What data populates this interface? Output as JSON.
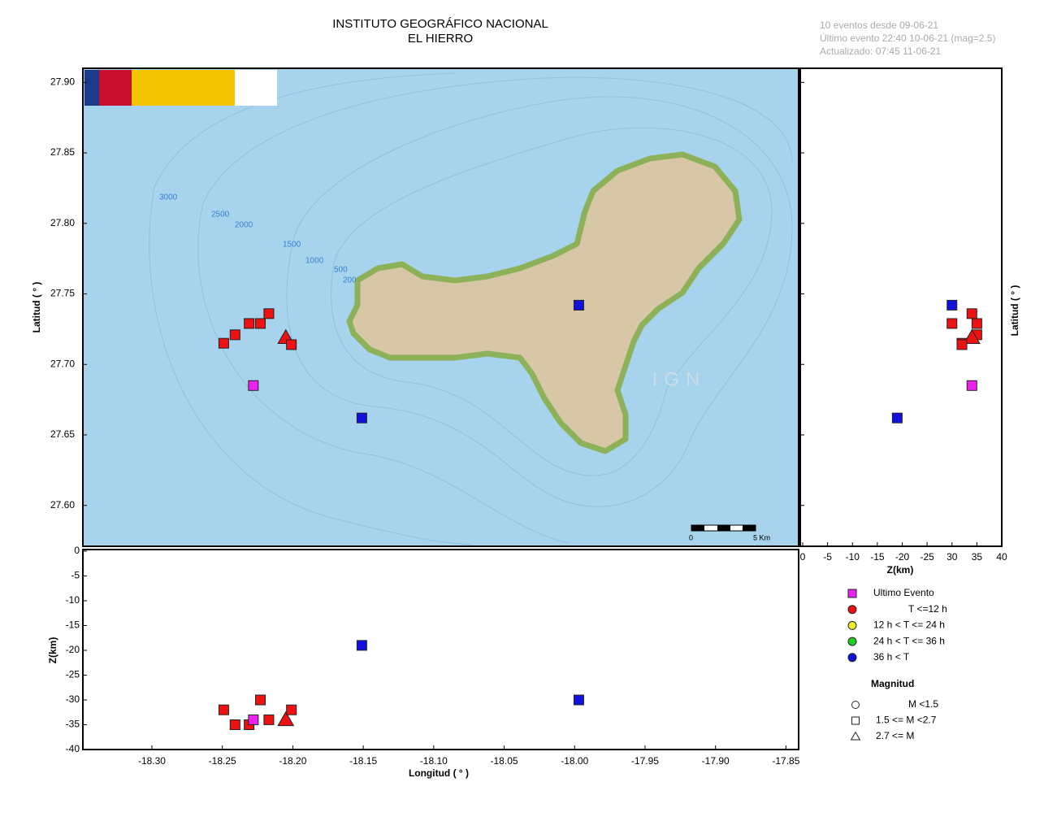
{
  "header": {
    "title": "INSTITUTO GEOGRÁFICO NACIONAL",
    "subtitle": "EL HIERRO",
    "info": [
      "10 eventos desde 09-06-21",
      "Último evento 22:40 10-06-21  (mag=2.5)",
      "Actualizado:  07:45  11-06-21"
    ]
  },
  "chart_data": {
    "type": "map",
    "xlabel": "Longitud ( ° )",
    "ylabel": "Latitud ( ° )",
    "zlabel": "Z(km)",
    "xlim": [
      -18.349,
      -17.841
    ],
    "ylim": [
      27.571,
      27.91
    ],
    "zlim": [
      0,
      -40
    ],
    "z2lim": [
      0,
      -40
    ],
    "xticks": [
      {
        "value": -18.3,
        "label": "-18.30"
      },
      {
        "value": -18.25,
        "label": "-18.25"
      },
      {
        "value": -18.2,
        "label": "-18.20"
      },
      {
        "value": -18.15,
        "label": "-18.15"
      },
      {
        "value": -18.1,
        "label": "-18.10"
      },
      {
        "value": -18.05,
        "label": "-18.05"
      },
      {
        "value": -18.0,
        "label": "-18.00"
      },
      {
        "value": -17.95,
        "label": "-17.95"
      },
      {
        "value": -17.9,
        "label": "-17.90"
      },
      {
        "value": -17.85,
        "label": "-17.85"
      }
    ],
    "yticks": [
      {
        "value": 27.9,
        "label": "27.90"
      },
      27.85,
      {
        "value": 27.8,
        "label": "27.80"
      },
      27.75,
      {
        "value": 27.7,
        "label": "27.70"
      },
      27.65,
      {
        "value": 27.6,
        "label": "27.60"
      }
    ],
    "zticks": [
      0,
      -5,
      -10,
      -15,
      -20,
      -25,
      -30,
      -35,
      -40
    ],
    "z2ticks": [
      0,
      -5,
      -10,
      -15,
      -20,
      -25,
      {
        "value": -30,
        "label": "30"
      },
      {
        "value": -35,
        "label": "35"
      },
      {
        "value": -40,
        "label": "40"
      }
    ],
    "events": {
      "lon": [
        -18.249,
        -18.241,
        -18.231,
        -18.223,
        -18.217,
        -18.205,
        -18.201,
        -18.228,
        -18.151,
        -17.997
      ],
      "lat": [
        27.715,
        27.721,
        27.729,
        27.729,
        27.736,
        27.719,
        27.714,
        27.685,
        27.662,
        27.742
      ],
      "depth": [
        -32,
        -35,
        -35,
        -30,
        -34,
        -34,
        -32,
        -34,
        -19,
        -30
      ],
      "color": [
        "#ee1111",
        "#ee1111",
        "#ee1111",
        "#ee1111",
        "#ee1111",
        "#ee1111",
        "#ee1111",
        "#ee22ee",
        "#1111dd",
        "#1111dd"
      ],
      "shape": [
        "square",
        "square",
        "square",
        "square",
        "square",
        "triangle",
        "square",
        "square",
        "square",
        "square"
      ]
    },
    "legend": {
      "time": [
        {
          "label": "Ultimo Evento",
          "color": "#ee22ee",
          "marker": "square"
        },
        {
          "label": "T <=12 h",
          "color": "#ee1111",
          "marker": "circle"
        },
        {
          "label": "12 h  < T <= 24 h",
          "color": "#eeee22",
          "marker": "circle"
        },
        {
          "label": "24 h  < T <= 36 h",
          "color": "#22cc22",
          "marker": "circle"
        },
        {
          "label": "36 h <  T",
          "color": "#1111dd",
          "marker": "circle"
        }
      ],
      "magnitude_title": "Magnitud",
      "magnitude": [
        {
          "label": "M <1.5",
          "marker": "circle"
        },
        {
          "label": "1.5 <= M <2.7",
          "marker": "square"
        },
        {
          "label": "2.7 <= M",
          "marker": "triangle"
        }
      ]
    },
    "map_labels": {
      "contours": [
        "3000",
        "2500",
        "2000",
        "1500",
        "1000",
        "500",
        "200"
      ],
      "watermark": "IGN",
      "scale": [
        "0",
        "5 Km"
      ]
    }
  }
}
